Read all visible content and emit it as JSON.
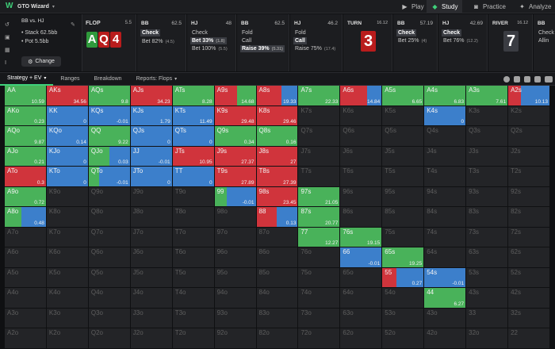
{
  "app": {
    "brand": "GTO Wizard",
    "nav": [
      {
        "label": "Play",
        "icon": "play-icon",
        "active": false
      },
      {
        "label": "Study",
        "icon": "graduation-cap-icon",
        "active": true
      },
      {
        "label": "Practice",
        "icon": "gamepad-icon",
        "active": false
      },
      {
        "label": "Analyze",
        "icon": "bulb-icon",
        "active": false
      }
    ]
  },
  "spot": {
    "title": "BB vs. HJ",
    "stack": "Stack 62.5bb",
    "pot": "Pot 5.5bb",
    "change_label": "Change"
  },
  "flop": {
    "label": "FLOP",
    "pot": "5.5",
    "cards": [
      {
        "rank": "A",
        "color": "green"
      },
      {
        "rank": "Q",
        "color": "red"
      },
      {
        "rank": "4",
        "color": "red"
      }
    ]
  },
  "actions": [
    {
      "player": "BB",
      "pot": "62.5",
      "options": [
        {
          "label": "Check",
          "size": "",
          "selected": true
        },
        {
          "label": "Bet 82%",
          "size": "(4.5)",
          "selected": false
        }
      ]
    },
    {
      "player": "HJ",
      "pot": "48",
      "options": [
        {
          "label": "Check",
          "size": "",
          "selected": false
        },
        {
          "label": "Bet 33%",
          "size": "(1.8)",
          "selected": true
        },
        {
          "label": "Bet 100%",
          "size": "(5.5)",
          "selected": false
        }
      ]
    },
    {
      "player": "BB",
      "pot": "62.5",
      "options": [
        {
          "label": "Fold",
          "size": "",
          "selected": false
        },
        {
          "label": "Call",
          "size": "",
          "selected": false
        },
        {
          "label": "Raise 39%",
          "size": "(5.31)",
          "selected": true
        }
      ]
    },
    {
      "player": "HJ",
      "pot": "46.2",
      "options": [
        {
          "label": "Fold",
          "size": "",
          "selected": false
        },
        {
          "label": "Call",
          "size": "",
          "selected": true
        },
        {
          "label": "Raise 75%",
          "size": "(17.4)",
          "selected": false
        }
      ]
    }
  ],
  "turn": {
    "label": "TURN",
    "pot": "16.12",
    "card": {
      "rank": "3",
      "color": "red"
    }
  },
  "actions2": [
    {
      "player": "BB",
      "pot": "57.19",
      "options": [
        {
          "label": "Check",
          "size": "",
          "selected": true
        },
        {
          "label": "Bet 25%",
          "size": "(4)",
          "selected": false
        }
      ]
    },
    {
      "player": "HJ",
      "pot": "42.69",
      "options": [
        {
          "label": "Check",
          "size": "",
          "selected": true
        },
        {
          "label": "Bet 76%",
          "size": "(12.2)",
          "selected": false
        }
      ]
    }
  ],
  "river": {
    "label": "RIVER",
    "pot": "16.12",
    "card": {
      "rank": "7",
      "color": "gray"
    }
  },
  "actions3": [
    {
      "player": "BB",
      "pot": "",
      "options": [
        {
          "label": "Check",
          "size": "",
          "selected": false
        },
        {
          "label": "Allin",
          "size": "",
          "selected": false
        }
      ]
    }
  ],
  "tabs": [
    {
      "label": "Strategy + EV",
      "active": true,
      "dropdown": true
    },
    {
      "label": "Ranges",
      "active": false
    },
    {
      "label": "Breakdown",
      "active": false
    },
    {
      "label": "Reports: Flops",
      "active": false,
      "dropdown": true
    }
  ],
  "colors": {
    "red": "#d0343c",
    "green": "#49b25a",
    "blue": "#3c7fcb",
    "empty": "#232427"
  },
  "ranks": [
    "A",
    "K",
    "Q",
    "J",
    "T",
    "9",
    "8",
    "7",
    "6",
    "5",
    "4",
    "3",
    "2"
  ],
  "grid": [
    [
      {
        "h": "AA",
        "s": [
          0,
          100,
          0
        ],
        "ev": "10.59"
      },
      {
        "h": "AKs",
        "s": [
          100,
          0,
          0
        ],
        "ev": "34.56"
      },
      {
        "h": "AQs",
        "s": [
          0,
          100,
          0
        ],
        "ev": "9.8"
      },
      {
        "h": "AJs",
        "s": [
          100,
          0,
          0
        ],
        "ev": "34.23"
      },
      {
        "h": "ATs",
        "s": [
          0,
          100,
          0
        ],
        "ev": "8.28"
      },
      {
        "h": "A9s",
        "s": [
          55,
          45,
          0
        ],
        "ev": "14.68"
      },
      {
        "h": "A8s",
        "s": [
          60,
          0,
          40
        ],
        "ev": "19.33"
      },
      {
        "h": "A7s",
        "s": [
          0,
          100,
          0
        ],
        "ev": "22.33"
      },
      {
        "h": "A6s",
        "s": [
          65,
          0,
          35
        ],
        "ev": "14.84"
      },
      {
        "h": "A5s",
        "s": [
          0,
          100,
          0
        ],
        "ev": "6.65"
      },
      {
        "h": "A4s",
        "s": [
          0,
          100,
          0
        ],
        "ev": "6.83"
      },
      {
        "h": "A3s",
        "s": [
          0,
          100,
          0
        ],
        "ev": "7.61"
      },
      {
        "h": "A2s",
        "s": [
          30,
          0,
          70
        ],
        "ev": "10.13"
      }
    ],
    [
      {
        "h": "AKo",
        "s": [
          0,
          100,
          0
        ],
        "ev": "0.23"
      },
      {
        "h": "KK",
        "s": [
          0,
          0,
          100
        ],
        "ev": "0"
      },
      {
        "h": "KQs",
        "s": [
          0,
          0,
          100
        ],
        "ev": "-0.01"
      },
      {
        "h": "KJs",
        "s": [
          0,
          0,
          100
        ],
        "ev": "1.79"
      },
      {
        "h": "KTs",
        "s": [
          0,
          0,
          100
        ],
        "ev": "11.49"
      },
      {
        "h": "K9s",
        "s": [
          100,
          0,
          0
        ],
        "ev": "29.48"
      },
      {
        "h": "K8s",
        "s": [
          100,
          0,
          0
        ],
        "ev": "29.46"
      },
      {
        "h": "K7s",
        "ev": ""
      },
      {
        "h": "K6s",
        "ev": ""
      },
      {
        "h": "K5s",
        "ev": ""
      },
      {
        "h": "K4s",
        "s": [
          0,
          0,
          100
        ],
        "ev": "0"
      },
      {
        "h": "K3s",
        "ev": ""
      },
      {
        "h": "K2s",
        "ev": ""
      }
    ],
    [
      {
        "h": "AQo",
        "s": [
          0,
          100,
          0
        ],
        "ev": "9.87"
      },
      {
        "h": "KQo",
        "s": [
          0,
          0,
          100
        ],
        "ev": "0.14"
      },
      {
        "h": "QQ",
        "s": [
          0,
          100,
          0
        ],
        "ev": "9.22"
      },
      {
        "h": "QJs",
        "s": [
          0,
          0,
          100
        ],
        "ev": "0"
      },
      {
        "h": "QTs",
        "s": [
          0,
          0,
          100
        ],
        "ev": "0"
      },
      {
        "h": "Q9s",
        "s": [
          0,
          100,
          0
        ],
        "ev": "0.34"
      },
      {
        "h": "Q8s",
        "s": [
          0,
          100,
          0
        ],
        "ev": "0.16"
      },
      {
        "h": "Q7s",
        "ev": ""
      },
      {
        "h": "Q6s",
        "ev": ""
      },
      {
        "h": "Q5s",
        "ev": ""
      },
      {
        "h": "Q4s",
        "ev": ""
      },
      {
        "h": "Q3s",
        "ev": ""
      },
      {
        "h": "Q2s",
        "ev": ""
      }
    ],
    [
      {
        "h": "AJo",
        "s": [
          0,
          100,
          0
        ],
        "ev": "0.21"
      },
      {
        "h": "KJo",
        "s": [
          0,
          0,
          100
        ],
        "ev": "0"
      },
      {
        "h": "QJo",
        "s": [
          0,
          50,
          50
        ],
        "ev": "0.03"
      },
      {
        "h": "JJ",
        "s": [
          0,
          0,
          100
        ],
        "ev": "-0.01"
      },
      {
        "h": "JTs",
        "s": [
          100,
          0,
          0
        ],
        "ev": "10.95"
      },
      {
        "h": "J9s",
        "s": [
          100,
          0,
          0
        ],
        "ev": "27.37"
      },
      {
        "h": "J8s",
        "s": [
          100,
          0,
          0
        ],
        "ev": "27"
      },
      {
        "h": "J7s",
        "ev": ""
      },
      {
        "h": "J6s",
        "ev": ""
      },
      {
        "h": "J5s",
        "ev": ""
      },
      {
        "h": "J4s",
        "ev": ""
      },
      {
        "h": "J3s",
        "ev": ""
      },
      {
        "h": "J2s",
        "ev": ""
      }
    ],
    [
      {
        "h": "ATo",
        "s": [
          100,
          0,
          0
        ],
        "ev": "0.3"
      },
      {
        "h": "KTo",
        "s": [
          0,
          0,
          100
        ],
        "ev": "0"
      },
      {
        "h": "QTo",
        "s": [
          0,
          25,
          75
        ],
        "ev": "-0.01"
      },
      {
        "h": "JTo",
        "s": [
          0,
          0,
          100
        ],
        "ev": "0"
      },
      {
        "h": "TT",
        "s": [
          0,
          0,
          100
        ],
        "ev": "0"
      },
      {
        "h": "T9s",
        "s": [
          100,
          0,
          0
        ],
        "ev": "27.89"
      },
      {
        "h": "T8s",
        "s": [
          100,
          0,
          0
        ],
        "ev": "27.39"
      },
      {
        "h": "T7s",
        "ev": ""
      },
      {
        "h": "T6s",
        "ev": ""
      },
      {
        "h": "T5s",
        "ev": ""
      },
      {
        "h": "T4s",
        "ev": ""
      },
      {
        "h": "T3s",
        "ev": ""
      },
      {
        "h": "T2s",
        "ev": ""
      }
    ],
    [
      {
        "h": "A9o",
        "s": [
          0,
          100,
          0
        ],
        "ev": "0.72"
      },
      {
        "h": "K9o",
        "ev": ""
      },
      {
        "h": "Q9o",
        "ev": ""
      },
      {
        "h": "J9o",
        "ev": ""
      },
      {
        "h": "T9o",
        "ev": ""
      },
      {
        "h": "99",
        "s": [
          0,
          30,
          70
        ],
        "ev": "-0.01"
      },
      {
        "h": "98s",
        "s": [
          100,
          0,
          0
        ],
        "ev": "23.45"
      },
      {
        "h": "97s",
        "s": [
          0,
          100,
          0
        ],
        "ev": "21.05"
      },
      {
        "h": "96s",
        "ev": ""
      },
      {
        "h": "95s",
        "ev": ""
      },
      {
        "h": "94s",
        "ev": ""
      },
      {
        "h": "93s",
        "ev": ""
      },
      {
        "h": "92s",
        "ev": ""
      }
    ],
    [
      {
        "h": "A8o",
        "s": [
          0,
          40,
          60
        ],
        "ev": "0.48"
      },
      {
        "h": "K8o",
        "ev": ""
      },
      {
        "h": "Q8o",
        "ev": ""
      },
      {
        "h": "J8o",
        "ev": ""
      },
      {
        "h": "T8o",
        "ev": ""
      },
      {
        "h": "98o",
        "ev": ""
      },
      {
        "h": "88",
        "s": [
          50,
          0,
          50
        ],
        "ev": "0.13"
      },
      {
        "h": "87s",
        "s": [
          0,
          100,
          0
        ],
        "ev": "20.77"
      },
      {
        "h": "86s",
        "ev": ""
      },
      {
        "h": "85s",
        "ev": ""
      },
      {
        "h": "84s",
        "ev": ""
      },
      {
        "h": "83s",
        "ev": ""
      },
      {
        "h": "82s",
        "ev": ""
      }
    ],
    [
      {
        "h": "A7o",
        "ev": ""
      },
      {
        "h": "K7o",
        "ev": ""
      },
      {
        "h": "Q7o",
        "ev": ""
      },
      {
        "h": "J7o",
        "ev": ""
      },
      {
        "h": "T7o",
        "ev": ""
      },
      {
        "h": "97o",
        "ev": ""
      },
      {
        "h": "87o",
        "ev": ""
      },
      {
        "h": "77",
        "s": [
          0,
          100,
          0
        ],
        "ev": "12.27"
      },
      {
        "h": "76s",
        "s": [
          0,
          100,
          0
        ],
        "ev": "19.15"
      },
      {
        "h": "75s",
        "ev": ""
      },
      {
        "h": "74s",
        "ev": ""
      },
      {
        "h": "73s",
        "ev": ""
      },
      {
        "h": "72s",
        "ev": ""
      }
    ],
    [
      {
        "h": "A6o",
        "ev": ""
      },
      {
        "h": "K6o",
        "ev": ""
      },
      {
        "h": "Q6o",
        "ev": ""
      },
      {
        "h": "J6o",
        "ev": ""
      },
      {
        "h": "T6o",
        "ev": ""
      },
      {
        "h": "96o",
        "ev": ""
      },
      {
        "h": "86o",
        "ev": ""
      },
      {
        "h": "76o",
        "ev": ""
      },
      {
        "h": "66",
        "s": [
          0,
          0,
          100
        ],
        "ev": "-0.01"
      },
      {
        "h": "65s",
        "s": [
          0,
          100,
          0
        ],
        "ev": "19.25"
      },
      {
        "h": "64s",
        "ev": ""
      },
      {
        "h": "63s",
        "ev": ""
      },
      {
        "h": "62s",
        "ev": ""
      }
    ],
    [
      {
        "h": "A5o",
        "ev": ""
      },
      {
        "h": "K5o",
        "ev": ""
      },
      {
        "h": "Q5o",
        "ev": ""
      },
      {
        "h": "J5o",
        "ev": ""
      },
      {
        "h": "T5o",
        "ev": ""
      },
      {
        "h": "95o",
        "ev": ""
      },
      {
        "h": "85o",
        "ev": ""
      },
      {
        "h": "75o",
        "ev": ""
      },
      {
        "h": "65o",
        "ev": ""
      },
      {
        "h": "55",
        "s": [
          35,
          0,
          65
        ],
        "ev": "0.27"
      },
      {
        "h": "54s",
        "s": [
          0,
          0,
          100
        ],
        "ev": "-0.01"
      },
      {
        "h": "53s",
        "ev": ""
      },
      {
        "h": "52s",
        "ev": ""
      }
    ],
    [
      {
        "h": "A4o",
        "ev": ""
      },
      {
        "h": "K4o",
        "ev": ""
      },
      {
        "h": "Q4o",
        "ev": ""
      },
      {
        "h": "J4o",
        "ev": ""
      },
      {
        "h": "T4o",
        "ev": ""
      },
      {
        "h": "94o",
        "ev": ""
      },
      {
        "h": "84o",
        "ev": ""
      },
      {
        "h": "74o",
        "ev": ""
      },
      {
        "h": "64o",
        "ev": ""
      },
      {
        "h": "54o",
        "ev": ""
      },
      {
        "h": "44",
        "s": [
          0,
          100,
          0
        ],
        "ev": "6.27"
      },
      {
        "h": "43s",
        "ev": ""
      },
      {
        "h": "42s",
        "ev": ""
      }
    ],
    [
      {
        "h": "A3o",
        "ev": ""
      },
      {
        "h": "K3o",
        "ev": ""
      },
      {
        "h": "Q3o",
        "ev": ""
      },
      {
        "h": "J3o",
        "ev": ""
      },
      {
        "h": "T3o",
        "ev": ""
      },
      {
        "h": "93o",
        "ev": ""
      },
      {
        "h": "83o",
        "ev": ""
      },
      {
        "h": "73o",
        "ev": ""
      },
      {
        "h": "63o",
        "ev": ""
      },
      {
        "h": "53o",
        "ev": ""
      },
      {
        "h": "43o",
        "ev": ""
      },
      {
        "h": "33",
        "ev": ""
      },
      {
        "h": "32s",
        "ev": ""
      }
    ],
    [
      {
        "h": "A2o",
        "ev": ""
      },
      {
        "h": "K2o",
        "ev": ""
      },
      {
        "h": "Q2o",
        "ev": ""
      },
      {
        "h": "J2o",
        "ev": ""
      },
      {
        "h": "T2o",
        "ev": ""
      },
      {
        "h": "92o",
        "ev": ""
      },
      {
        "h": "82o",
        "ev": ""
      },
      {
        "h": "72o",
        "ev": ""
      },
      {
        "h": "62o",
        "ev": ""
      },
      {
        "h": "52o",
        "ev": ""
      },
      {
        "h": "42o",
        "ev": ""
      },
      {
        "h": "32o",
        "ev": ""
      },
      {
        "h": "22",
        "ev": ""
      }
    ]
  ]
}
